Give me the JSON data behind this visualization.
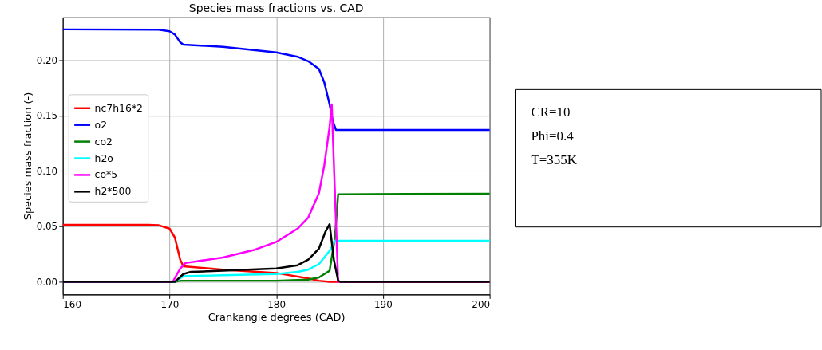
{
  "chart_data": {
    "type": "line",
    "title": "Species mass fractions vs. CAD",
    "xlabel": "Crankangle degrees (CAD)",
    "ylabel": "Species mass fraction (-)",
    "xlim": [
      160,
      200
    ],
    "xticks": [
      160,
      170,
      180,
      190,
      200
    ],
    "ylim": [
      -0.0114,
      0.2386
    ],
    "yticks": [
      {
        "value": 0,
        "label": "0.00"
      },
      {
        "value": 0.05,
        "label": "0.05"
      },
      {
        "value": 0.1,
        "label": "0.10"
      },
      {
        "value": 0.15,
        "label": "0.15"
      },
      {
        "value": 0.2,
        "label": "0.20"
      }
    ],
    "grid": true,
    "legend": "center left",
    "line_style": "solid",
    "marker": "none",
    "annotations": [
      "CR=10",
      "Phi=0.4",
      "T=355K"
    ],
    "series": [
      {
        "name": "nc7h16*2",
        "color": "#ff0000",
        "x": [
          160,
          168,
          169,
          170,
          170.5,
          171,
          171.3,
          175,
          180,
          183,
          184,
          185,
          200
        ],
        "values": [
          0.0515,
          0.0515,
          0.051,
          0.048,
          0.04,
          0.02,
          0.014,
          0.011,
          0.008,
          0.003,
          0.001,
          0,
          0
        ]
      },
      {
        "name": "o2",
        "color": "#0000ff",
        "x": [
          160,
          169,
          170,
          170.5,
          171,
          171.3,
          175,
          180,
          182,
          183,
          184,
          184.5,
          185,
          185.3,
          185.6,
          200
        ],
        "values": [
          0.2277,
          0.2275,
          0.226,
          0.223,
          0.216,
          0.214,
          0.212,
          0.207,
          0.203,
          0.199,
          0.192,
          0.18,
          0.16,
          0.145,
          0.137,
          0.137
        ]
      },
      {
        "name": "co2",
        "color": "#008000",
        "x": [
          160,
          170.5,
          171,
          180,
          183,
          184,
          185,
          185.5,
          185.8,
          200
        ],
        "values": [
          0,
          0,
          0.001,
          0.001,
          0.002,
          0.004,
          0.01,
          0.04,
          0.079,
          0.0795
        ]
      },
      {
        "name": "h2o",
        "color": "#00ffff",
        "x": [
          160,
          170.5,
          171.3,
          175,
          180,
          182,
          183,
          184,
          185,
          185.5,
          200
        ],
        "values": [
          0,
          0,
          0.005,
          0.006,
          0.007,
          0.009,
          0.011,
          0.016,
          0.028,
          0.037,
          0.037
        ]
      },
      {
        "name": "co*5",
        "color": "#ff00ff",
        "x": [
          160,
          170.3,
          171,
          171.5,
          175,
          178,
          180,
          182,
          183,
          184,
          184.5,
          185,
          185.2,
          185.5,
          185.8,
          200
        ],
        "values": [
          0,
          0,
          0.012,
          0.017,
          0.022,
          0.029,
          0.036,
          0.048,
          0.058,
          0.08,
          0.105,
          0.14,
          0.16,
          0.08,
          0,
          0
        ]
      },
      {
        "name": "h2*500",
        "color": "#000000",
        "x": [
          160,
          170.5,
          171.3,
          172,
          175,
          180,
          182,
          183,
          184,
          184.6,
          185,
          185.4,
          185.8,
          186,
          200
        ],
        "values": [
          0,
          0,
          0.007,
          0.009,
          0.01,
          0.012,
          0.015,
          0.02,
          0.03,
          0.045,
          0.052,
          0.02,
          0.001,
          0,
          0
        ]
      }
    ]
  }
}
